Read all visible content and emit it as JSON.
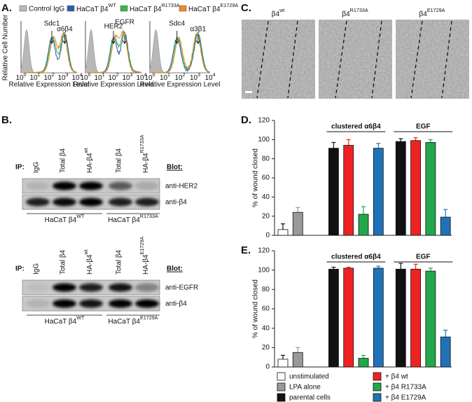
{
  "panel_labels": [
    "A.",
    "B.",
    "C.",
    "D.",
    "E."
  ],
  "panel_a": {
    "legend": [
      {
        "name": "Control IgG",
        "color": "#b8b8b8"
      },
      {
        "name": {
          "base": "HaCaT β4",
          "sup": "WT"
        },
        "color": "#2e5fa8"
      },
      {
        "name": {
          "base": "HaCaT β4",
          "sup": "R1733A"
        },
        "color": "#3cb44b"
      },
      {
        "name": {
          "base": "HaCaT β4",
          "sup": "E1729A"
        },
        "color": "#ef8a22"
      }
    ],
    "y_label": "Relative Cell Number",
    "x_label": "Relative Expression Level",
    "tick_base": "10",
    "tick_exponents": [
      "0",
      "1",
      "2",
      "3",
      "4"
    ],
    "plots": [
      {
        "annotations": [
          "Sdc1",
          "α6β4"
        ]
      },
      {
        "annotations": [
          "HER2",
          "EGFR"
        ]
      },
      {
        "annotations": [
          "Sdc4",
          "α3β1"
        ]
      }
    ]
  },
  "panel_b": {
    "blots": [
      {
        "ip": "IP:",
        "blot": "Blot:",
        "lanes": [
          "IgG",
          "Total β4",
          {
            "base": "HA-β4",
            "sup": "wt"
          },
          "Total β4",
          {
            "base": "HA-β4",
            "sup": "R1733A"
          }
        ],
        "rows": [
          "anti-HER2",
          "anti-β4"
        ],
        "groups": [
          {
            "base": "HaCaT β4",
            "sup": "WT"
          },
          {
            "base": "HaCaT β4",
            "sup": "R1733A"
          }
        ]
      },
      {
        "ip": "IP:",
        "blot": "Blot:",
        "lanes": [
          "IgG",
          "Total β4",
          {
            "base": "HA-β4",
            "sup": "wt"
          },
          "Total β4",
          {
            "base": "HA-β4",
            "sup": "E1729A"
          }
        ],
        "rows": [
          "anti-EGFR",
          "anti-β4"
        ],
        "groups": [
          {
            "base": "HaCaT β4",
            "sup": "WT"
          },
          {
            "base": "HaCaT β4",
            "sup": "E1729A"
          }
        ]
      }
    ]
  },
  "panel_c": {
    "labels": [
      {
        "base": "β4",
        "sup": "wt"
      },
      {
        "base": "β4",
        "sup": "R1733A"
      },
      {
        "base": "β4",
        "sup": "E1729A"
      }
    ]
  },
  "chart_data": [
    {
      "type": "bar",
      "y_label": "% of wound closed",
      "values": [
        6,
        24,
        91,
        94,
        22,
        91,
        98,
        99,
        97,
        19
      ],
      "errors": [
        6,
        5,
        6,
        6,
        8,
        5,
        3,
        3,
        3,
        8
      ],
      "colors": [
        "#ffffff",
        "#999999",
        "#111111",
        "#ee2222",
        "#22a84a",
        "#1f72b8",
        "#111111",
        "#ee2222",
        "#22a84a",
        "#1f72b8"
      ],
      "ylim": [
        0,
        120
      ],
      "yticks": [
        0,
        20,
        40,
        60,
        80,
        100,
        120
      ],
      "annotations": [
        "clustered α6β4",
        "EGF"
      ]
    },
    {
      "type": "bar",
      "y_label": "% of wound closed",
      "values": [
        8,
        15,
        101,
        102,
        9,
        102,
        101,
        101,
        99,
        31
      ],
      "errors": [
        4,
        5,
        2,
        1,
        3,
        2,
        6,
        5,
        3,
        7
      ],
      "colors": [
        "#ffffff",
        "#999999",
        "#111111",
        "#ee2222",
        "#22a84a",
        "#1f72b8",
        "#111111",
        "#ee2222",
        "#22a84a",
        "#1f72b8"
      ],
      "ylim": [
        0,
        120
      ],
      "yticks": [
        0,
        20,
        40,
        60,
        80,
        100,
        120
      ],
      "annotations": [
        "clustered α6β4",
        "EGF"
      ]
    }
  ],
  "legend": [
    {
      "name": "unstimulated",
      "color": "#ffffff"
    },
    {
      "name": "LPA alone",
      "color": "#999999"
    },
    {
      "name": "parental cells",
      "color": "#111111"
    },
    {
      "name": "+ β4 wt",
      "color": "#ee2222"
    },
    {
      "name": "+ β4 R1733A",
      "color": "#22a84a"
    },
    {
      "name": "+ β4 E1729A",
      "color": "#1f72b8"
    }
  ]
}
